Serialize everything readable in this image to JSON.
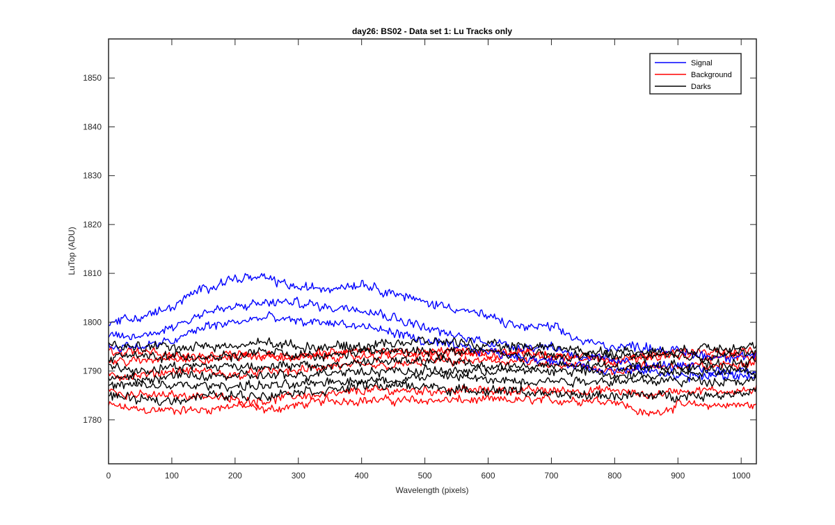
{
  "chart_data": {
    "type": "line",
    "title": "day26: BS02 - Data set 1: Lu Tracks only",
    "xlabel": "Wavelength (pixels)",
    "ylabel": "LuTop (ADU)",
    "xlim": [
      0,
      1024
    ],
    "ylim": [
      1771,
      1858
    ],
    "xticks": [
      0,
      100,
      200,
      300,
      400,
      500,
      600,
      700,
      800,
      900,
      1000
    ],
    "yticks": [
      1780,
      1790,
      1800,
      1810,
      1820,
      1830,
      1840,
      1850
    ],
    "grid": false,
    "legend": {
      "placement": "top-right",
      "entries": [
        {
          "label": "Signal",
          "color": "#0000ff"
        },
        {
          "label": "Background",
          "color": "#ff0000"
        },
        {
          "label": "Darks",
          "color": "#000000"
        }
      ]
    },
    "groups": [
      {
        "label": "Signal",
        "color": "#0000ff",
        "noise": 1.2,
        "lines": [
          {
            "x": [
              0,
              50,
              100,
              150,
              200,
              250,
              300,
              350,
              400,
              450,
              500,
              550,
              600,
              650,
              700,
              750,
              800,
              850,
              900,
              950,
              1024
            ],
            "y": [
              1800,
              1801,
              1803,
              1807,
              1809,
              1809,
              1807,
              1807,
              1808,
              1806,
              1804,
              1803,
              1801,
              1799,
              1799,
              1796,
              1795,
              1795,
              1794,
              1793,
              1793
            ]
          },
          {
            "x": [
              0,
              50,
              100,
              150,
              200,
              250,
              300,
              350,
              400,
              450,
              500,
              550,
              600,
              650,
              700,
              750,
              800,
              850,
              900,
              950,
              1024
            ],
            "y": [
              1797,
              1797,
              1799,
              1802,
              1803,
              1804,
              1804,
              1803,
              1803,
              1801,
              1799,
              1797,
              1796,
              1795,
              1795,
              1793,
              1792,
              1791,
              1791,
              1790,
              1790
            ]
          },
          {
            "x": [
              0,
              50,
              100,
              150,
              200,
              250,
              300,
              350,
              400,
              450,
              500,
              550,
              600,
              650,
              700,
              750,
              800,
              850,
              900,
              950,
              1024
            ],
            "y": [
              1795,
              1795,
              1796,
              1799,
              1800,
              1801,
              1800,
              1800,
              1799,
              1798,
              1796,
              1795,
              1794,
              1793,
              1792,
              1791,
              1790,
              1790,
              1789,
              1789,
              1789
            ]
          }
        ]
      },
      {
        "label": "Background",
        "color": "#ff0000",
        "noise": 1.1,
        "lines": [
          {
            "x": [
              0,
              50,
              100,
              150,
              200,
              250,
              300,
              350,
              400,
              450,
              500,
              550,
              600,
              650,
              700,
              750,
              800,
              850,
              900,
              950,
              1024
            ],
            "y": [
              1783,
              1782,
              1782,
              1782,
              1783,
              1782,
              1783,
              1784,
              1784,
              1784,
              1784,
              1784,
              1784,
              1784,
              1784,
              1784,
              1784,
              1781,
              1783,
              1783,
              1783
            ]
          },
          {
            "x": [
              0,
              50,
              100,
              150,
              200,
              250,
              300,
              350,
              400,
              450,
              500,
              550,
              600,
              650,
              700,
              750,
              800,
              850,
              900,
              950,
              1024
            ],
            "y": [
              1786,
              1785,
              1785,
              1785,
              1784,
              1784,
              1785,
              1785,
              1786,
              1786,
              1786,
              1786,
              1786,
              1786,
              1786,
              1786,
              1786,
              1785,
              1786,
              1786,
              1786
            ]
          },
          {
            "x": [
              0,
              50,
              100,
              150,
              200,
              250,
              300,
              350,
              400,
              450,
              500,
              550,
              600,
              650,
              700,
              750,
              800,
              850,
              900,
              950,
              1024
            ],
            "y": [
              1789,
              1789,
              1790,
              1790,
              1789,
              1790,
              1790,
              1791,
              1791,
              1791,
              1792,
              1792,
              1792,
              1792,
              1791,
              1791,
              1790,
              1791,
              1791,
              1791,
              1792
            ]
          },
          {
            "x": [
              0,
              50,
              100,
              150,
              200,
              250,
              300,
              350,
              400,
              450,
              500,
              550,
              600,
              650,
              700,
              750,
              800,
              850,
              900,
              950,
              1024
            ],
            "y": [
              1792,
              1792,
              1793,
              1792,
              1793,
              1793,
              1793,
              1793,
              1793,
              1793,
              1794,
              1794,
              1793,
              1794,
              1793,
              1793,
              1792,
              1793,
              1793,
              1793,
              1793
            ]
          },
          {
            "x": [
              0,
              50,
              100,
              150,
              200,
              250,
              300,
              350,
              400,
              450,
              500,
              550,
              600,
              650,
              700,
              750,
              800,
              850,
              900,
              950,
              1024
            ],
            "y": [
              1794,
              1794,
              1793,
              1793,
              1794,
              1793,
              1793,
              1794,
              1794,
              1794,
              1793,
              1794,
              1794,
              1794,
              1793,
              1793,
              1792,
              1793,
              1794,
              1794,
              1794
            ]
          }
        ]
      },
      {
        "label": "Darks",
        "color": "#000000",
        "noise": 1.2,
        "lines": [
          {
            "x": [
              0,
              50,
              100,
              150,
              200,
              250,
              300,
              350,
              400,
              450,
              500,
              550,
              600,
              650,
              700,
              750,
              800,
              850,
              900,
              950,
              1024
            ],
            "y": [
              1785,
              1784,
              1784,
              1785,
              1785,
              1785,
              1786,
              1786,
              1787,
              1787,
              1787,
              1786,
              1786,
              1786,
              1785,
              1785,
              1785,
              1785,
              1785,
              1785,
              1786
            ]
          },
          {
            "x": [
              0,
              50,
              100,
              150,
              200,
              250,
              300,
              350,
              400,
              450,
              500,
              550,
              600,
              650,
              700,
              750,
              800,
              850,
              900,
              950,
              1024
            ],
            "y": [
              1787,
              1787,
              1787,
              1787,
              1787,
              1787,
              1787,
              1788,
              1788,
              1788,
              1789,
              1789,
              1788,
              1788,
              1788,
              1788,
              1788,
              1788,
              1788,
              1788,
              1788
            ]
          },
          {
            "x": [
              0,
              50,
              100,
              150,
              200,
              250,
              300,
              350,
              400,
              450,
              500,
              550,
              600,
              650,
              700,
              750,
              800,
              850,
              900,
              950,
              1024
            ],
            "y": [
              1789,
              1788,
              1789,
              1789,
              1789,
              1789,
              1789,
              1790,
              1790,
              1790,
              1790,
              1790,
              1790,
              1790,
              1790,
              1790,
              1789,
              1789,
              1790,
              1790,
              1790
            ]
          },
          {
            "x": [
              0,
              50,
              100,
              150,
              200,
              250,
              300,
              350,
              400,
              450,
              500,
              550,
              600,
              650,
              700,
              750,
              800,
              850,
              900,
              950,
              1024
            ],
            "y": [
              1791,
              1790,
              1791,
              1791,
              1791,
              1791,
              1791,
              1791,
              1792,
              1792,
              1792,
              1792,
              1791,
              1791,
              1791,
              1791,
              1791,
              1791,
              1791,
              1791,
              1792
            ]
          },
          {
            "x": [
              0,
              50,
              100,
              150,
              200,
              250,
              300,
              350,
              400,
              450,
              500,
              550,
              600,
              650,
              700,
              750,
              800,
              850,
              900,
              950,
              1024
            ],
            "y": [
              1793,
              1793,
              1793,
              1793,
              1793,
              1794,
              1793,
              1793,
              1794,
              1794,
              1794,
              1794,
              1794,
              1793,
              1793,
              1793,
              1793,
              1793,
              1793,
              1793,
              1794
            ]
          },
          {
            "x": [
              0,
              50,
              100,
              150,
              200,
              250,
              300,
              350,
              400,
              450,
              500,
              550,
              600,
              650,
              700,
              750,
              800,
              850,
              900,
              950,
              1024
            ],
            "y": [
              1795,
              1795,
              1795,
              1795,
              1795,
              1796,
              1795,
              1795,
              1795,
              1796,
              1796,
              1796,
              1795,
              1795,
              1795,
              1794,
              1794,
              1794,
              1794,
              1795,
              1795
            ]
          }
        ]
      }
    ]
  }
}
